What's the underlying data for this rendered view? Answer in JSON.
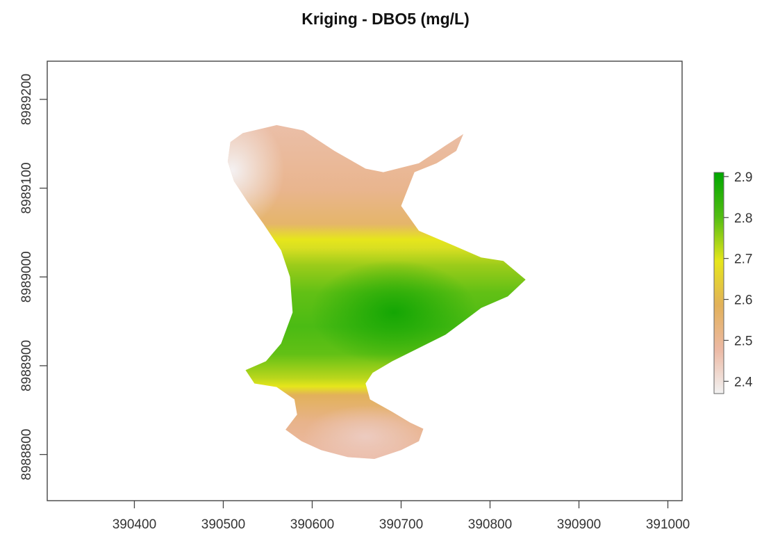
{
  "chart_data": {
    "type": "heatmap",
    "title": "Kriging - DBO5 (mg/L)",
    "xlabel": "",
    "ylabel": "",
    "x_ticks": [
      390400,
      390500,
      390600,
      390700,
      390800,
      390900,
      391000
    ],
    "y_ticks": [
      8988800,
      8988900,
      8989000,
      8989100,
      8989200
    ],
    "xlim": [
      390302,
      391016
    ],
    "ylim": [
      8988748,
      8989243
    ],
    "legend": {
      "placement": "right",
      "range": [
        2.37,
        2.91
      ],
      "ticks": [
        2.4,
        2.5,
        2.6,
        2.7,
        2.8,
        2.9
      ],
      "colors": [
        "#f2f2f2",
        "#ecb9a4",
        "#e2b15a",
        "#e6e61b",
        "#52bd13",
        "#00a600"
      ]
    },
    "grid": false,
    "region_outline": [
      [
        390522,
        8989162
      ],
      [
        390560,
        8989171
      ],
      [
        390590,
        8989165
      ],
      [
        390625,
        8989142
      ],
      [
        390660,
        8989122
      ],
      [
        390680,
        8989118
      ],
      [
        390720,
        8989128
      ],
      [
        390750,
        8989148
      ],
      [
        390770,
        8989161
      ],
      [
        390762,
        8989142
      ],
      [
        390740,
        8989128
      ],
      [
        390715,
        8989118
      ],
      [
        390700,
        8989080
      ],
      [
        390720,
        8989052
      ],
      [
        390760,
        8989035
      ],
      [
        390790,
        8989022
      ],
      [
        390815,
        8989018
      ],
      [
        390840,
        8988997
      ],
      [
        390820,
        8988978
      ],
      [
        390790,
        8988965
      ],
      [
        390770,
        8988950
      ],
      [
        390750,
        8988935
      ],
      [
        390720,
        8988920
      ],
      [
        390690,
        8988905
      ],
      [
        390668,
        8988892
      ],
      [
        390660,
        8988880
      ],
      [
        390665,
        8988862
      ],
      [
        390690,
        8988848
      ],
      [
        390710,
        8988836
      ],
      [
        390725,
        8988829
      ],
      [
        390720,
        8988815
      ],
      [
        390700,
        8988805
      ],
      [
        390670,
        8988795
      ],
      [
        390640,
        8988797
      ],
      [
        390610,
        8988805
      ],
      [
        390588,
        8988815
      ],
      [
        390570,
        8988828
      ],
      [
        390583,
        8988845
      ],
      [
        390580,
        8988862
      ],
      [
        390560,
        8988876
      ],
      [
        390535,
        8988880
      ],
      [
        390525,
        8988895
      ],
      [
        390548,
        8988905
      ],
      [
        390565,
        8988925
      ],
      [
        390578,
        8988960
      ],
      [
        390575,
        8989000
      ],
      [
        390565,
        8989030
      ],
      [
        390545,
        8989060
      ],
      [
        390527,
        8989085
      ],
      [
        390512,
        8989108
      ],
      [
        390505,
        8989130
      ],
      [
        390508,
        8989152
      ]
    ],
    "value_peaks": [
      {
        "x": 390692,
        "y": 8988960,
        "value": 2.9
      },
      {
        "x": 390510,
        "y": 8989120,
        "value": 2.37
      },
      {
        "x": 390660,
        "y": 8988820,
        "value": 2.45
      }
    ]
  }
}
